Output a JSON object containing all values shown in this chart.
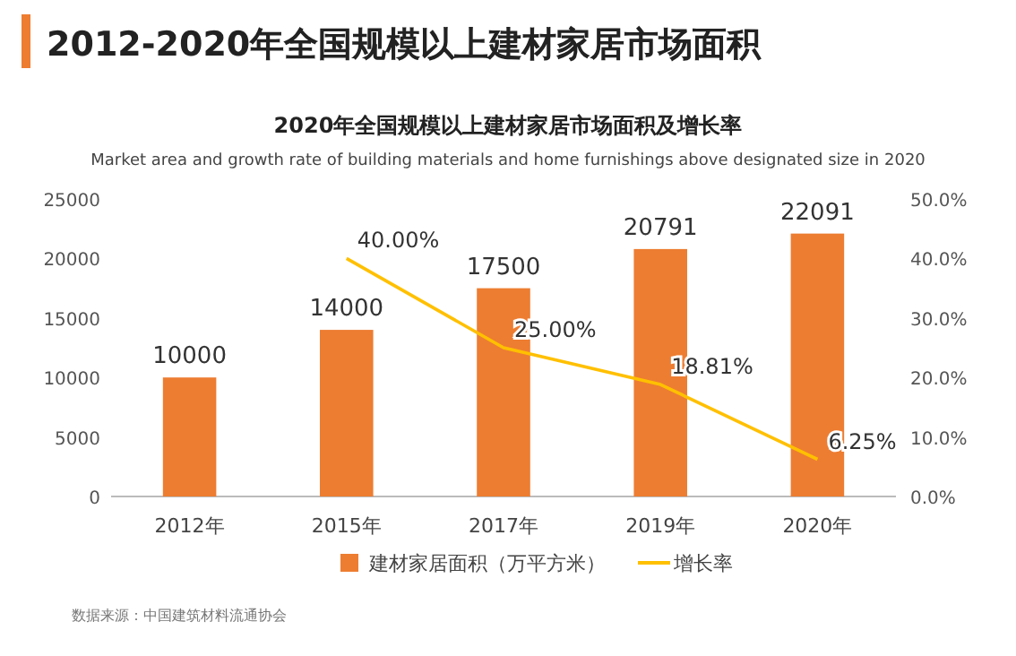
{
  "chart_data": {
    "type": "bar",
    "title": "2012-2020年全国规模以上建材家居市场面积",
    "subtitle": "2020年全国规模以上建材家居市场面积及增长率",
    "annotations": [
      "Market area and growth rate of building materials and home furnishings above designated size in 2020",
      "数据来源：中国建筑材料流通协会"
    ],
    "categories": [
      "2012年",
      "2015年",
      "2017年",
      "2019年",
      "2020年"
    ],
    "series": [
      {
        "name": "建材家居面积（万平方米）",
        "color": "#ed7d31",
        "values": [
          10000,
          14000,
          17500,
          20791,
          22091
        ]
      },
      {
        "name": "增长率",
        "type": "line",
        "axis": "y2",
        "color": "#ffc000",
        "values": [
          null,
          40,
          25,
          18.81,
          6.25
        ],
        "value_labels": [
          null,
          "40.00%",
          "25.00%",
          "18.81%",
          "6.25%"
        ]
      }
    ],
    "data_labels": true,
    "ylim": [
      0,
      25000
    ],
    "yticks": [
      0,
      5000,
      10000,
      15000,
      20000,
      25000
    ],
    "y2lim": [
      0,
      50
    ],
    "y2ticks": [
      {
        "value": 0,
        "label": "0.0%"
      },
      {
        "value": 10,
        "label": "10.0%"
      },
      {
        "value": 20,
        "label": "20.0%"
      },
      {
        "value": 30,
        "label": "30.0%"
      },
      {
        "value": 40,
        "label": "40.0%"
      },
      {
        "value": 50,
        "label": "50.0%"
      }
    ],
    "legend": "bottom"
  }
}
